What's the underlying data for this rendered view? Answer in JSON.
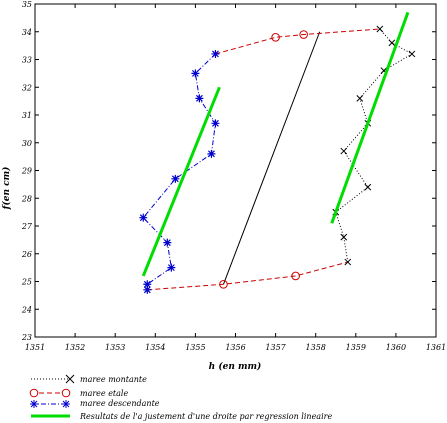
{
  "chart_data": {
    "type": "scatter",
    "xlabel": "h (en mm)",
    "ylabel": "f(en cm)",
    "xlim": [
      1351,
      1361
    ],
    "ylim": [
      23,
      35
    ],
    "x_ticks": [
      "1351",
      "1352",
      "1353",
      "1354",
      "1355",
      "1356",
      "1357",
      "1358",
      "1359",
      "1360",
      "1361"
    ],
    "y_ticks": [
      "23",
      "24",
      "25",
      "26",
      "27",
      "28",
      "29",
      "30",
      "31",
      "32",
      "33",
      "34",
      "35"
    ],
    "grid": false,
    "legend_position": "below",
    "series": [
      {
        "name": "maree montante",
        "color": "#000000",
        "line": "dotted",
        "marker": "x",
        "points": [
          [
            1358.8,
            25.7
          ],
          [
            1358.7,
            26.6
          ],
          [
            1358.5,
            27.5
          ],
          [
            1359.3,
            28.4
          ],
          [
            1358.7,
            29.7
          ],
          [
            1359.3,
            30.7
          ],
          [
            1359.1,
            31.6
          ],
          [
            1359.7,
            32.6
          ],
          [
            1360.4,
            33.2
          ],
          [
            1359.9,
            33.6
          ],
          [
            1359.6,
            34.1
          ]
        ]
      },
      {
        "name": "maree etale",
        "color": "#cc0000",
        "line": "dashed",
        "marker": "circle",
        "points": [
          [
            1353.8,
            24.7
          ],
          [
            1355.7,
            24.9
          ],
          [
            1357.5,
            25.2
          ],
          [
            1358.8,
            25.7
          ]
        ],
        "upper_points": [
          [
            1355.5,
            33.2
          ],
          [
            1357.0,
            33.8
          ],
          [
            1357.7,
            33.9
          ],
          [
            1359.6,
            34.1
          ]
        ]
      },
      {
        "name": "maree descendante",
        "color": "#0000cc",
        "line": "dashdot",
        "marker": "star",
        "points": [
          [
            1355.5,
            33.2
          ],
          [
            1355.0,
            32.5
          ],
          [
            1355.1,
            31.6
          ],
          [
            1355.5,
            30.7
          ],
          [
            1355.4,
            29.6
          ],
          [
            1354.5,
            28.7
          ],
          [
            1353.7,
            27.3
          ],
          [
            1354.3,
            26.4
          ],
          [
            1354.4,
            25.5
          ],
          [
            1353.8,
            24.9
          ],
          [
            1353.8,
            24.7
          ]
        ]
      },
      {
        "name": "Resultats de l'a justement d'une droite par regression lineaire",
        "color": "#00dd00",
        "line": "solid",
        "marker": "none",
        "segments": [
          [
            [
              1353.7,
              25.2
            ],
            [
              1355.6,
              32.0
            ]
          ],
          [
            [
              1358.4,
              27.1
            ],
            [
              1360.3,
              34.7
            ]
          ]
        ]
      }
    ],
    "reference_line": {
      "color": "#000000",
      "points": [
        [
          1355.7,
          24.9
        ],
        [
          1358.1,
          34.0
        ]
      ]
    }
  }
}
